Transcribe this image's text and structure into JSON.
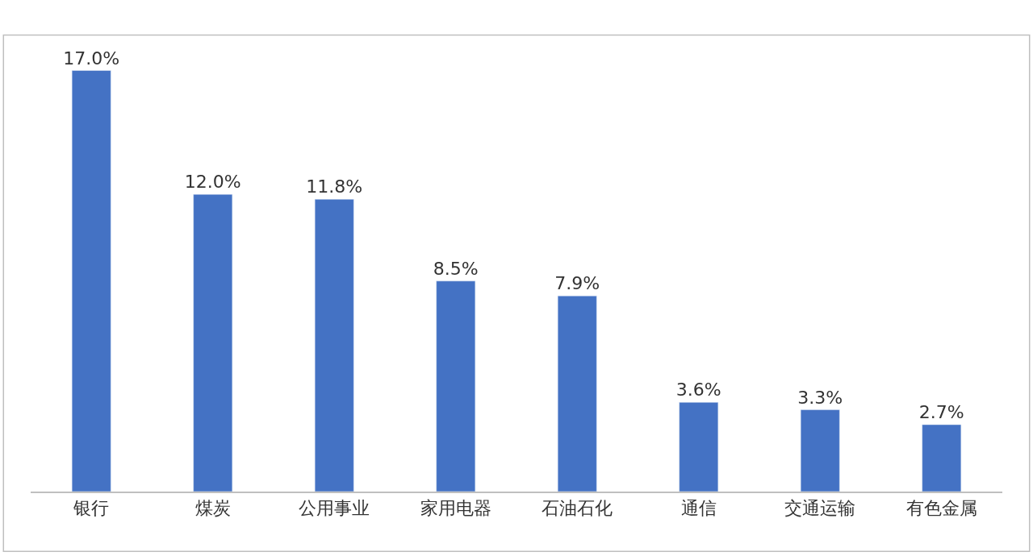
{
  "chart_data": {
    "type": "bar",
    "categories": [
      "银行",
      "煤炭",
      "公用事业",
      "家用电器",
      "石油石化",
      "通信",
      "交通运输",
      "有色金属"
    ],
    "values": [
      17.0,
      12.0,
      11.8,
      8.5,
      7.9,
      3.6,
      3.3,
      2.7
    ],
    "value_labels": [
      "17.0%",
      "12.0%",
      "11.8%",
      "8.5%",
      "7.9%",
      "3.6%",
      "3.3%",
      "2.7%"
    ],
    "color": "#4472c4",
    "tick_labels": "x"
  }
}
